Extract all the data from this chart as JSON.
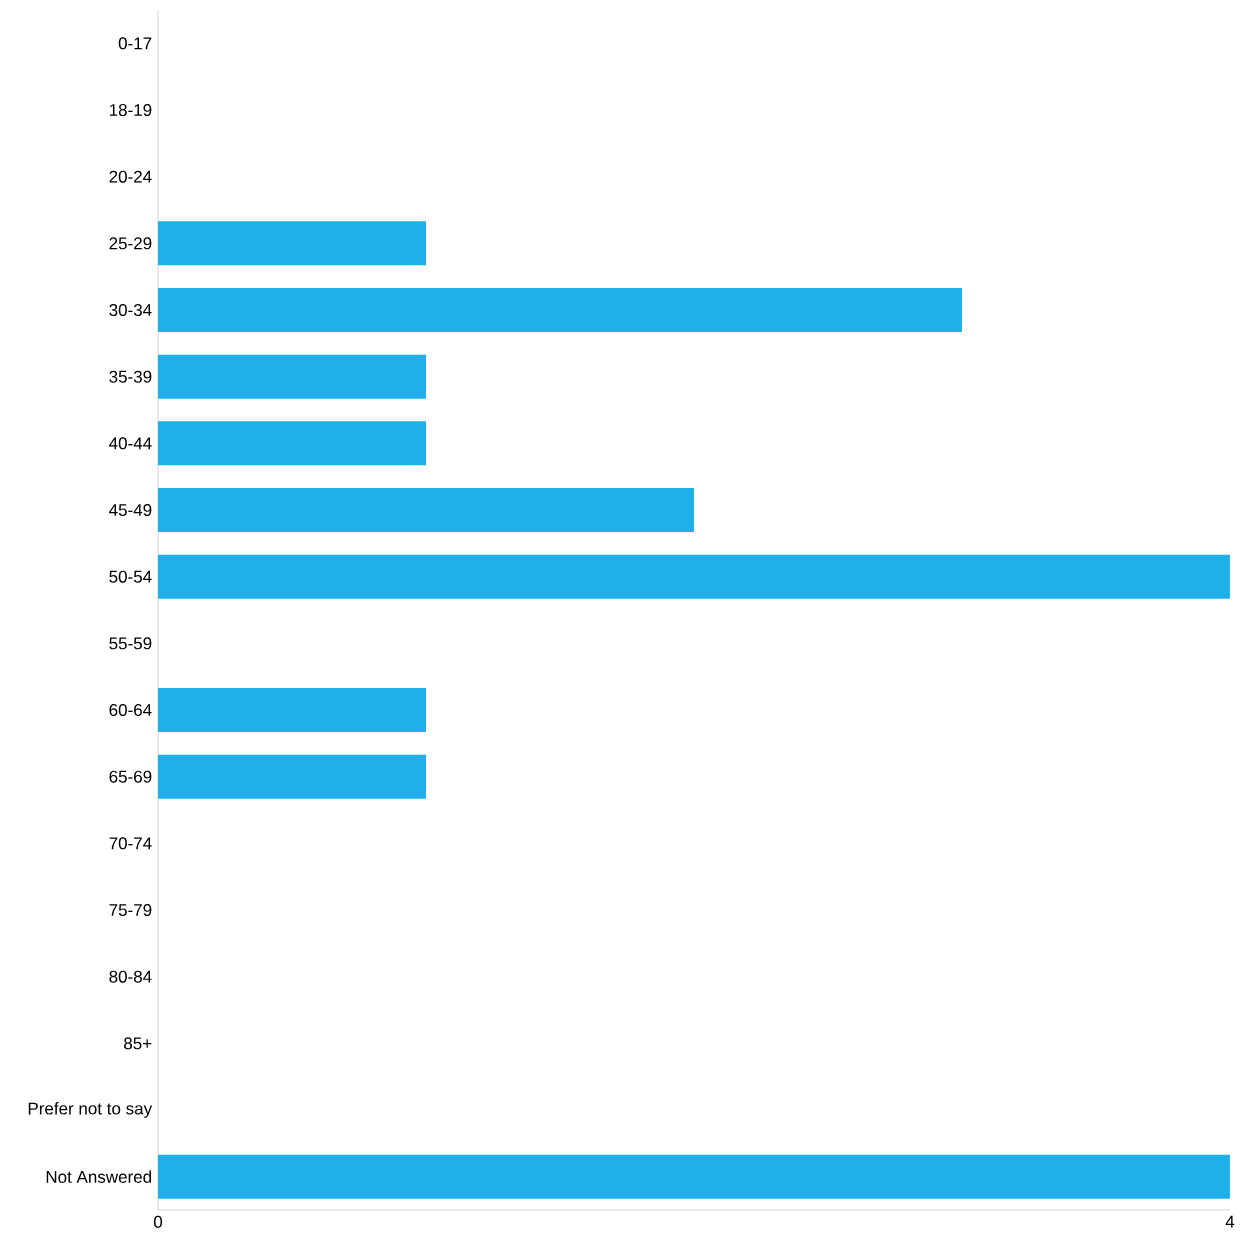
{
  "chart_data": {
    "type": "bar",
    "orientation": "horizontal",
    "color": "#1fb0e8",
    "categories": [
      "0-17",
      "18-19",
      "20-24",
      "25-29",
      "30-34",
      "35-39",
      "40-44",
      "45-49",
      "50-54",
      "55-59",
      "60-64",
      "65-69",
      "70-74",
      "75-79",
      "80-84",
      "85+",
      "Prefer not to say",
      "Not Answered"
    ],
    "values": [
      0,
      0,
      0,
      1,
      3,
      1,
      1,
      2,
      4,
      0,
      1,
      1,
      0,
      0,
      0,
      0,
      0,
      4
    ],
    "xlim": [
      0,
      4
    ],
    "xticks": [
      0,
      4
    ]
  }
}
